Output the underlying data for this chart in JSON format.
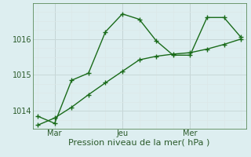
{
  "xlabel": "Pression niveau de la mer( hPa )",
  "bg_color": "#ddeef0",
  "grid_color_major": "#c8d8d8",
  "grid_color_minor": "#dce8e8",
  "line_color": "#1a6b1a",
  "line1_x": [
    0,
    1,
    2,
    3,
    4,
    5,
    6,
    7,
    8,
    9,
    10,
    11,
    12
  ],
  "line1_y": [
    1013.85,
    1013.65,
    1014.85,
    1015.05,
    1016.2,
    1016.7,
    1016.55,
    1015.95,
    1015.55,
    1015.55,
    1016.6,
    1016.6,
    1016.05
  ],
  "line2_x": [
    0,
    1,
    2,
    3,
    4,
    5,
    6,
    7,
    8,
    9,
    10,
    11,
    12
  ],
  "line2_y": [
    1013.6,
    1013.8,
    1014.1,
    1014.45,
    1014.78,
    1015.1,
    1015.42,
    1015.52,
    1015.58,
    1015.62,
    1015.72,
    1015.85,
    1016.0
  ],
  "xtick_positions": [
    1,
    5,
    9
  ],
  "xtick_labels": [
    "Mar",
    "Jeu",
    "Mer"
  ],
  "vline_positions": [
    1,
    5,
    9
  ],
  "xlim": [
    -0.3,
    12.3
  ],
  "ylim": [
    1013.5,
    1017.0
  ],
  "ytick_positions": [
    1014,
    1015,
    1016
  ],
  "ytick_labels": [
    "1014",
    "1015",
    "1016"
  ],
  "marker": "+",
  "linewidth": 1.0,
  "markersize": 4,
  "xlabel_fontsize": 8,
  "tick_fontsize": 7,
  "spine_color": "#5a8a5a",
  "vline_color": "#6a7a8a"
}
